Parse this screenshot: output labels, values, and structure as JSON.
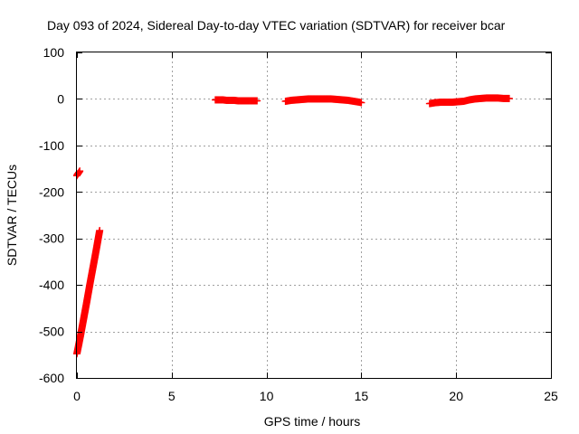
{
  "chart_data": {
    "type": "scatter",
    "title": "Day 093 of 2024, Sidereal Day-to-day VTEC variation (SDTVAR) for receiver bcar",
    "xlabel": "GPS time / hours",
    "ylabel": "SDTVAR / TECUs",
    "xlim": [
      0,
      25
    ],
    "ylim": [
      -600,
      100
    ],
    "xticks": [
      0,
      5,
      10,
      15,
      20,
      25
    ],
    "yticks": [
      -600,
      -500,
      -400,
      -300,
      -200,
      -100,
      0,
      100
    ],
    "xtick_labels": [
      "0",
      "5",
      "10",
      "15",
      "20",
      "25"
    ],
    "ytick_labels": [
      "-600",
      "-500",
      "-400",
      "-300",
      "-200",
      "-100",
      "0",
      "100"
    ],
    "grid": true,
    "legend": "none",
    "marker": "plus",
    "color": "#ff0000",
    "series": [
      {
        "segments": [
          {
            "x": [
              0.0,
              0.02,
              0.05,
              0.08,
              0.1,
              0.13,
              0.15
            ],
            "y": [
              -165,
              -163,
              -161,
              -160,
              -158,
              -157,
              -155
            ]
          },
          {
            "x": [
              0.0,
              0.1,
              0.2,
              0.3,
              0.4,
              0.5,
              0.6,
              0.7,
              0.8,
              0.9,
              1.0,
              1.1,
              1.2
            ],
            "y": [
              -548,
              -528,
              -507,
              -485,
              -463,
              -441,
              -418,
              -395,
              -373,
              -351,
              -329,
              -306,
              -283
            ]
          },
          {
            "x": [
              7.3,
              7.5,
              7.7,
              7.9,
              8.1,
              8.3,
              8.5,
              8.7,
              8.9,
              9.1,
              9.3,
              9.5
            ],
            "y": [
              -2,
              -2,
              -2,
              -3,
              -3,
              -3,
              -4,
              -4,
              -4,
              -4,
              -4,
              -4
            ]
          },
          {
            "x": [
              11.0,
              11.3,
              11.6,
              11.9,
              12.2,
              12.5,
              12.8,
              13.1,
              13.4,
              13.7,
              14.0,
              14.3,
              14.6,
              14.9,
              15.0
            ],
            "y": [
              -5,
              -3,
              -2,
              -1,
              0,
              0,
              0,
              0,
              0,
              -1,
              -2,
              -3,
              -5,
              -7,
              -8
            ]
          },
          {
            "x": [
              18.6,
              18.9,
              19.2,
              19.5,
              19.8,
              20.1,
              20.4,
              20.7,
              21.0,
              21.3,
              21.6,
              21.9,
              22.2,
              22.5,
              22.8
            ],
            "y": [
              -10,
              -8,
              -7,
              -7,
              -7,
              -6,
              -5,
              -2,
              0,
              1,
              2,
              2,
              2,
              1,
              1
            ]
          }
        ]
      }
    ]
  }
}
